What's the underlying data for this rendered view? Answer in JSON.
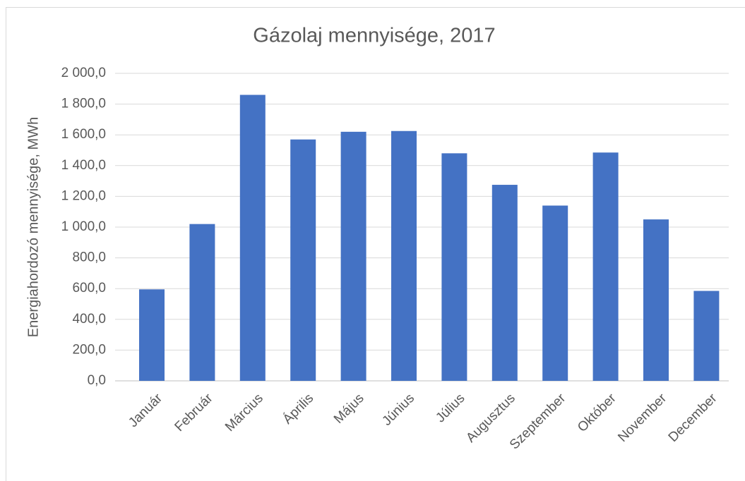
{
  "chart_data": {
    "type": "bar",
    "title": "Gázolaj mennyisége, 2017",
    "y_label": "Energiahordozó mennyisége, MWh",
    "categories": [
      "Január",
      "Február",
      "Március",
      "Április",
      "Május",
      "Június",
      "Július",
      "Augusztus",
      "Szeptember",
      "Október",
      "November",
      "December"
    ],
    "values": [
      595,
      1020,
      1860,
      1570,
      1620,
      1625,
      1480,
      1275,
      1140,
      1485,
      1050,
      585
    ],
    "color": "#4472c4",
    "ylim": [
      0,
      2000
    ],
    "yticks": [
      {
        "value": 0,
        "label": "0,0"
      },
      {
        "value": 200,
        "label": "200,0"
      },
      {
        "value": 400,
        "label": "400,0"
      },
      {
        "value": 600,
        "label": "600,0"
      },
      {
        "value": 800,
        "label": "800,0"
      },
      {
        "value": 1000,
        "label": "1 000,0"
      },
      {
        "value": 1200,
        "label": "1 200,0"
      },
      {
        "value": 1400,
        "label": "1 400,0"
      },
      {
        "value": 1600,
        "label": "1 600,0"
      },
      {
        "value": 1800,
        "label": "1 800,0"
      },
      {
        "value": 2000,
        "label": "2 000,0"
      }
    ],
    "grid": true
  }
}
